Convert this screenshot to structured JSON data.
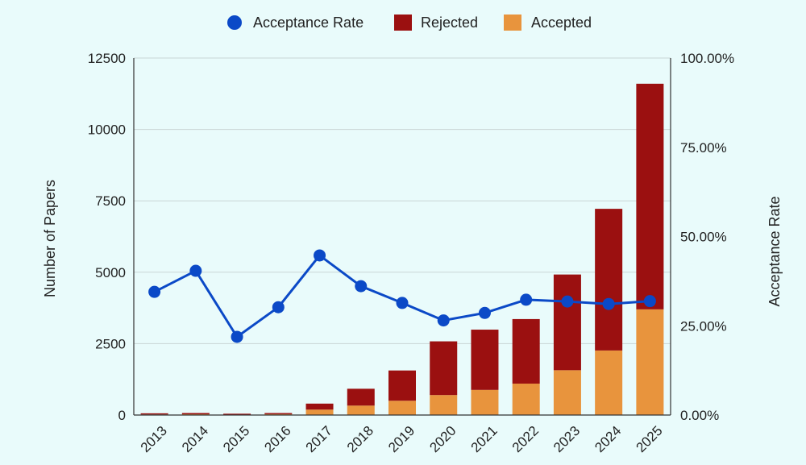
{
  "chart_data": {
    "type": "bar",
    "stacked": true,
    "categories": [
      "2013",
      "2014",
      "2015",
      "2016",
      "2017",
      "2018",
      "2019",
      "2020",
      "2021",
      "2022",
      "2023",
      "2024",
      "2025"
    ],
    "series": [
      {
        "name": "Accepted",
        "values": [
          20,
          28,
          10,
          30,
          190,
          330,
          500,
          700,
          880,
          1100,
          1570,
          2260,
          3700
        ],
        "color": "#e8943d"
      },
      {
        "name": "Rejected",
        "values": [
          40,
          42,
          36,
          40,
          210,
          590,
          1060,
          1880,
          2110,
          2260,
          3350,
          4960,
          7900
        ],
        "color": "#9b1010"
      }
    ],
    "line_series": {
      "name": "Acceptance Rate",
      "values": [
        0.345,
        0.404,
        0.219,
        0.302,
        0.447,
        0.361,
        0.314,
        0.265,
        0.286,
        0.323,
        0.318,
        0.311,
        0.319
      ],
      "color": "#0b49c7"
    },
    "title": "",
    "xlabel": "",
    "ylabel": "Number of Papers",
    "y2label": "Acceptance Rate",
    "ylim": [
      0,
      12500
    ],
    "y2lim": [
      0,
      1
    ],
    "yticks": [
      "0",
      "2500",
      "5000",
      "7500",
      "10000",
      "12500"
    ],
    "y2ticks": [
      "0.00%",
      "25.00%",
      "50.00%",
      "75.00%",
      "100.00%"
    ],
    "legend_placement": "top-center",
    "grid": "horizontal"
  }
}
